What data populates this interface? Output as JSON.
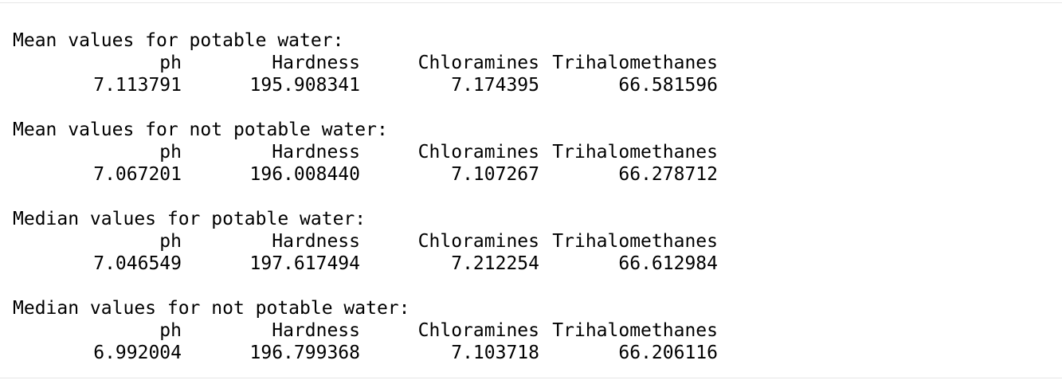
{
  "columns": [
    "ph",
    "Hardness",
    "Chloramines",
    "Trihalomethanes"
  ],
  "blocks": [
    {
      "heading": "Mean values for potable water:",
      "values": [
        "7.113791",
        "195.908341",
        "7.174395",
        "66.581596"
      ]
    },
    {
      "heading": "Mean values for not potable water:",
      "values": [
        "7.067201",
        "196.008440",
        "7.107267",
        "66.278712"
      ]
    },
    {
      "heading": "Median values for potable water:",
      "values": [
        "7.046549",
        "197.617494",
        "7.212254",
        "66.612984"
      ]
    },
    {
      "heading": "Median values for not potable water:",
      "values": [
        "6.992004",
        "196.799368",
        "7.103718",
        "66.206116"
      ]
    }
  ]
}
